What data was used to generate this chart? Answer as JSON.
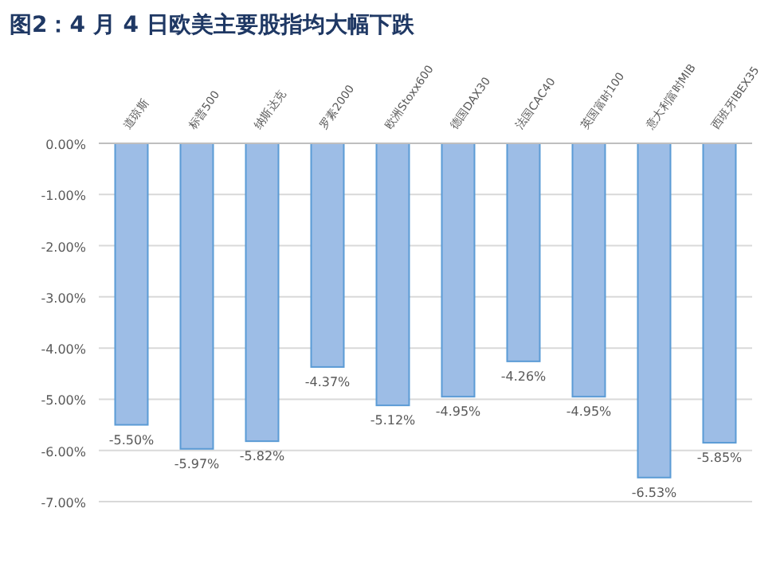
{
  "chart_data": {
    "type": "bar",
    "title": "图2：4 月 4 日欧美主要股指均大幅下跌",
    "categories": [
      "道琼斯",
      "标普500",
      "纳斯达克",
      "罗素2000",
      "欧洲Stoxx600",
      "德国DAX30",
      "法国CAC40",
      "英国富时100",
      "意大利富时MIB",
      "西班牙IBEX35"
    ],
    "values": [
      -5.5,
      -5.97,
      -5.82,
      -4.37,
      -5.12,
      -4.95,
      -4.26,
      -4.95,
      -6.53,
      -5.85
    ],
    "value_labels": [
      "-5.50%",
      "-5.97%",
      "-5.82%",
      "-4.37%",
      "-5.12%",
      "-4.95%",
      "-4.26%",
      "-4.95%",
      "-6.53%",
      "-5.85%"
    ],
    "color": "#9dbde6",
    "ylim": [
      -7,
      0
    ],
    "yticks": [
      {
        "value": 0,
        "label": "0.00%"
      },
      {
        "value": -1,
        "label": "-1.00%"
      },
      {
        "value": -2,
        "label": "-2.00%"
      },
      {
        "value": -3,
        "label": "-3.00%"
      },
      {
        "value": -4,
        "label": "-4.00%"
      },
      {
        "value": -5,
        "label": "-5.00%"
      },
      {
        "value": -6,
        "label": "-6.00%"
      },
      {
        "value": -7,
        "label": "-7.00%"
      }
    ],
    "grid": "y"
  }
}
